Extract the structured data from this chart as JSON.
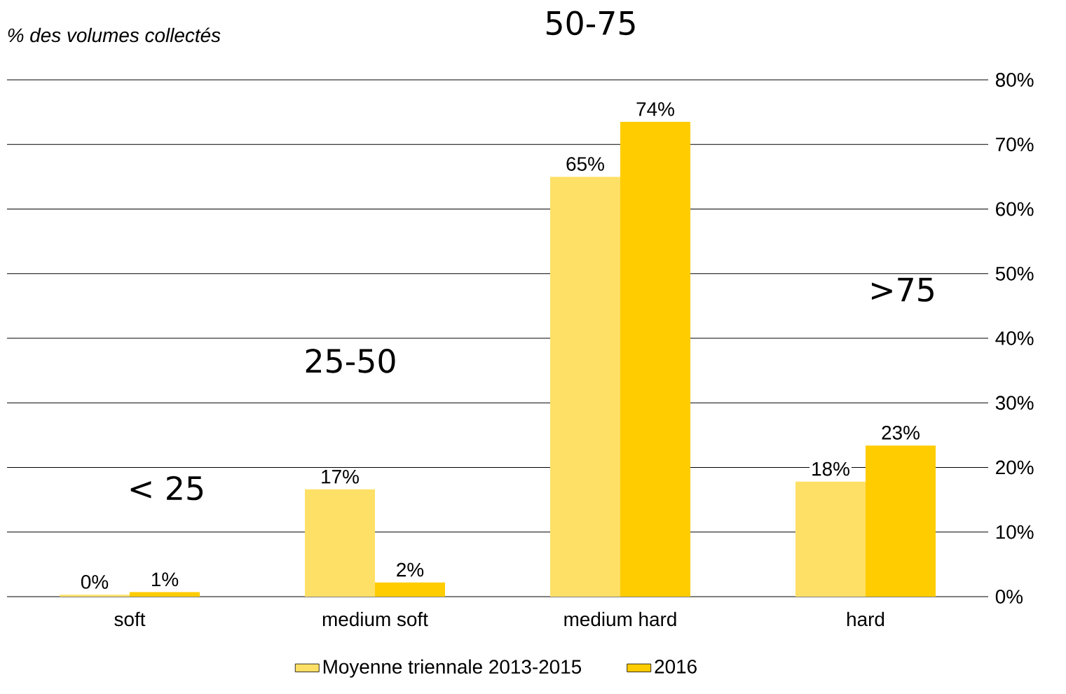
{
  "chart_data": {
    "type": "bar",
    "ylabel": "% des volumes collectés",
    "categories": [
      "soft",
      "medium soft",
      "medium hard",
      "hard"
    ],
    "series": [
      {
        "name": "Moyenne triennale 2013-2015",
        "color": "#ffe066",
        "values": [
          0.3,
          16.6,
          65.0,
          17.8
        ],
        "value_labels": [
          "0%",
          "17%",
          "65%",
          "18%"
        ]
      },
      {
        "name": "2016",
        "color": "#ffcc00",
        "values": [
          0.7,
          2.2,
          73.5,
          23.4
        ],
        "value_labels": [
          "1%",
          "2%",
          "74%",
          "23%"
        ]
      }
    ],
    "ylim": [
      0,
      80
    ],
    "yticks": [
      {
        "value": 0,
        "label": "0%"
      },
      {
        "value": 10,
        "label": "10%"
      },
      {
        "value": 20,
        "label": "20%"
      },
      {
        "value": 30,
        "label": "30%"
      },
      {
        "value": 40,
        "label": "40%"
      },
      {
        "value": 50,
        "label": "50%"
      },
      {
        "value": 60,
        "label": "60%"
      },
      {
        "value": 70,
        "label": "70%"
      },
      {
        "value": 80,
        "label": "80%"
      }
    ],
    "grid": "y",
    "legend": "bottom",
    "annotations": [
      "< 25",
      "25-50",
      "50-75",
      ">75"
    ]
  }
}
